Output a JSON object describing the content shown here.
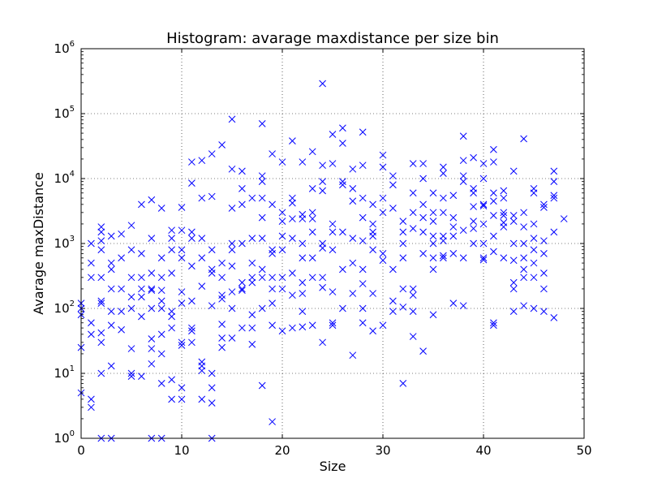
{
  "chart_data": {
    "type": "scatter",
    "title": "Histogram: avarage maxdistance per size bin",
    "xlabel": "Size",
    "ylabel": "Avarage maxDistance",
    "xlim": [
      0,
      50
    ],
    "ylim": [
      1,
      1000000
    ],
    "yscale": "log",
    "grid": true,
    "marker": "x",
    "marker_color": "#0000ff",
    "x_ticks": [
      {
        "value": 0,
        "label": "0"
      },
      {
        "value": 10,
        "label": "10"
      },
      {
        "value": 20,
        "label": "20"
      },
      {
        "value": 30,
        "label": "30"
      },
      {
        "value": 40,
        "label": "40"
      },
      {
        "value": 50,
        "label": "50"
      }
    ],
    "y_ticks": [
      {
        "value": 1,
        "base": "10",
        "exp": "0"
      },
      {
        "value": 10,
        "base": "10",
        "exp": "1"
      },
      {
        "value": 100,
        "base": "10",
        "exp": "2"
      },
      {
        "value": 1000,
        "base": "10",
        "exp": "3"
      },
      {
        "value": 10000,
        "base": "10",
        "exp": "4"
      },
      {
        "value": 100000,
        "base": "10",
        "exp": "5"
      },
      {
        "value": 1000000,
        "base": "10",
        "exp": "6"
      }
    ],
    "points": [
      [
        0,
        80
      ],
      [
        0,
        120
      ],
      [
        0,
        25
      ],
      [
        0,
        5
      ],
      [
        0,
        100
      ],
      [
        1,
        1000
      ],
      [
        1,
        500
      ],
      [
        1,
        300
      ],
      [
        1,
        60
      ],
      [
        1,
        40
      ],
      [
        1,
        4
      ],
      [
        1,
        3
      ],
      [
        2,
        1800
      ],
      [
        2,
        1500
      ],
      [
        2,
        1100
      ],
      [
        2,
        800
      ],
      [
        2,
        300
      ],
      [
        2,
        120
      ],
      [
        2,
        130
      ],
      [
        2,
        42
      ],
      [
        2,
        30
      ],
      [
        2,
        10
      ],
      [
        2,
        1
      ],
      [
        3,
        1300
      ],
      [
        3,
        500
      ],
      [
        3,
        400
      ],
      [
        3,
        200
      ],
      [
        3,
        90
      ],
      [
        3,
        55
      ],
      [
        3,
        13
      ],
      [
        3,
        1
      ],
      [
        4,
        1400
      ],
      [
        4,
        600
      ],
      [
        4,
        200
      ],
      [
        4,
        90
      ],
      [
        4,
        47
      ],
      [
        5,
        1900
      ],
      [
        5,
        800
      ],
      [
        5,
        300
      ],
      [
        5,
        150
      ],
      [
        5,
        100
      ],
      [
        5,
        24
      ],
      [
        5,
        10
      ],
      [
        5,
        9
      ],
      [
        6,
        4000
      ],
      [
        6,
        700
      ],
      [
        6,
        300
      ],
      [
        6,
        200
      ],
      [
        6,
        150
      ],
      [
        6,
        75
      ],
      [
        6,
        9
      ],
      [
        7,
        4700
      ],
      [
        7,
        1200
      ],
      [
        7,
        350
      ],
      [
        7,
        200
      ],
      [
        7,
        190
      ],
      [
        7,
        100
      ],
      [
        7,
        34
      ],
      [
        7,
        24
      ],
      [
        7,
        14
      ],
      [
        7,
        1
      ],
      [
        8,
        3500
      ],
      [
        8,
        600
      ],
      [
        8,
        300
      ],
      [
        8,
        190
      ],
      [
        8,
        130
      ],
      [
        8,
        100
      ],
      [
        8,
        40
      ],
      [
        8,
        20
      ],
      [
        8,
        7
      ],
      [
        8,
        1
      ],
      [
        9,
        1600
      ],
      [
        9,
        1200
      ],
      [
        9,
        800
      ],
      [
        9,
        350
      ],
      [
        9,
        90
      ],
      [
        9,
        75
      ],
      [
        9,
        50
      ],
      [
        9,
        8
      ],
      [
        9,
        4
      ],
      [
        10,
        3600
      ],
      [
        10,
        1600
      ],
      [
        10,
        800
      ],
      [
        10,
        600
      ],
      [
        10,
        180
      ],
      [
        10,
        120
      ],
      [
        10,
        30
      ],
      [
        10,
        27
      ],
      [
        10,
        6
      ],
      [
        10,
        4
      ],
      [
        11,
        18000
      ],
      [
        11,
        8500
      ],
      [
        11,
        1500
      ],
      [
        11,
        1200
      ],
      [
        11,
        450
      ],
      [
        11,
        130
      ],
      [
        11,
        50
      ],
      [
        11,
        45
      ],
      [
        11,
        30
      ],
      [
        12,
        19000
      ],
      [
        12,
        5000
      ],
      [
        12,
        1200
      ],
      [
        12,
        600
      ],
      [
        12,
        220
      ],
      [
        12,
        15
      ],
      [
        12,
        13
      ],
      [
        12,
        11
      ],
      [
        12,
        4
      ],
      [
        13,
        24000
      ],
      [
        13,
        5300
      ],
      [
        13,
        800
      ],
      [
        13,
        400
      ],
      [
        13,
        350
      ],
      [
        13,
        110
      ],
      [
        13,
        10
      ],
      [
        13,
        6
      ],
      [
        13,
        3.5
      ],
      [
        13,
        1
      ],
      [
        14,
        33000
      ],
      [
        14,
        500
      ],
      [
        14,
        300
      ],
      [
        14,
        160
      ],
      [
        14,
        140
      ],
      [
        14,
        57
      ],
      [
        14,
        35
      ],
      [
        14,
        25
      ],
      [
        15,
        82000
      ],
      [
        15,
        14000
      ],
      [
        15,
        3500
      ],
      [
        15,
        1000
      ],
      [
        15,
        800
      ],
      [
        15,
        450
      ],
      [
        15,
        180
      ],
      [
        15,
        100
      ],
      [
        15,
        35
      ],
      [
        16,
        13000
      ],
      [
        16,
        7000
      ],
      [
        16,
        4000
      ],
      [
        16,
        1000
      ],
      [
        16,
        250
      ],
      [
        16,
        200
      ],
      [
        16,
        190
      ],
      [
        16,
        50
      ],
      [
        17,
        5000
      ],
      [
        17,
        1200
      ],
      [
        17,
        500
      ],
      [
        17,
        300
      ],
      [
        17,
        250
      ],
      [
        17,
        80
      ],
      [
        17,
        50
      ],
      [
        17,
        28
      ],
      [
        18,
        70000
      ],
      [
        18,
        11000
      ],
      [
        18,
        9000
      ],
      [
        18,
        5000
      ],
      [
        18,
        2500
      ],
      [
        18,
        1200
      ],
      [
        18,
        400
      ],
      [
        18,
        300
      ],
      [
        18,
        100
      ],
      [
        18,
        6.5
      ],
      [
        19,
        24000
      ],
      [
        19,
        4000
      ],
      [
        19,
        800
      ],
      [
        19,
        700
      ],
      [
        19,
        300
      ],
      [
        19,
        200
      ],
      [
        19,
        120
      ],
      [
        19,
        55
      ],
      [
        19,
        1.8
      ],
      [
        20,
        18000
      ],
      [
        20,
        3000
      ],
      [
        20,
        2200
      ],
      [
        20,
        1300
      ],
      [
        20,
        800
      ],
      [
        20,
        300
      ],
      [
        20,
        200
      ],
      [
        20,
        45
      ],
      [
        21,
        38000
      ],
      [
        21,
        5000
      ],
      [
        21,
        4200
      ],
      [
        21,
        2400
      ],
      [
        21,
        1200
      ],
      [
        21,
        350
      ],
      [
        21,
        160
      ],
      [
        21,
        50
      ],
      [
        22,
        18000
      ],
      [
        22,
        2800
      ],
      [
        22,
        2400
      ],
      [
        22,
        1000
      ],
      [
        22,
        600
      ],
      [
        22,
        250
      ],
      [
        22,
        170
      ],
      [
        22,
        90
      ],
      [
        22,
        52
      ],
      [
        23,
        26000
      ],
      [
        23,
        7000
      ],
      [
        23,
        3000
      ],
      [
        23,
        2400
      ],
      [
        23,
        1500
      ],
      [
        23,
        600
      ],
      [
        23,
        300
      ],
      [
        23,
        55
      ],
      [
        24,
        290000
      ],
      [
        24,
        16000
      ],
      [
        24,
        9000
      ],
      [
        24,
        6500
      ],
      [
        24,
        1000
      ],
      [
        24,
        850
      ],
      [
        24,
        300
      ],
      [
        24,
        210
      ],
      [
        24,
        30
      ],
      [
        25,
        48000
      ],
      [
        25,
        17000
      ],
      [
        25,
        2000
      ],
      [
        25,
        1500
      ],
      [
        25,
        800
      ],
      [
        25,
        180
      ],
      [
        25,
        60
      ],
      [
        25,
        55
      ],
      [
        26,
        60000
      ],
      [
        26,
        35000
      ],
      [
        26,
        9000
      ],
      [
        26,
        8000
      ],
      [
        26,
        1500
      ],
      [
        26,
        400
      ],
      [
        26,
        100
      ],
      [
        27,
        14000
      ],
      [
        27,
        7000
      ],
      [
        27,
        4500
      ],
      [
        27,
        1200
      ],
      [
        27,
        500
      ],
      [
        27,
        170
      ],
      [
        27,
        19
      ],
      [
        28,
        52000
      ],
      [
        28,
        16000
      ],
      [
        28,
        5000
      ],
      [
        28,
        2500
      ],
      [
        28,
        1100
      ],
      [
        28,
        400
      ],
      [
        28,
        240
      ],
      [
        28,
        100
      ],
      [
        28,
        60
      ],
      [
        29,
        4000
      ],
      [
        29,
        2000
      ],
      [
        29,
        1500
      ],
      [
        29,
        1300
      ],
      [
        29,
        800
      ],
      [
        29,
        170
      ],
      [
        29,
        45
      ],
      [
        30,
        23000
      ],
      [
        30,
        15000
      ],
      [
        30,
        5000
      ],
      [
        30,
        3000
      ],
      [
        30,
        700
      ],
      [
        30,
        550
      ],
      [
        30,
        55
      ],
      [
        31,
        11000
      ],
      [
        31,
        8000
      ],
      [
        31,
        3500
      ],
      [
        31,
        400
      ],
      [
        31,
        130
      ],
      [
        31,
        90
      ],
      [
        32,
        2200
      ],
      [
        32,
        1500
      ],
      [
        32,
        1000
      ],
      [
        32,
        600
      ],
      [
        32,
        200
      ],
      [
        32,
        105
      ],
      [
        32,
        7
      ],
      [
        33,
        17000
      ],
      [
        33,
        6000
      ],
      [
        33,
        3000
      ],
      [
        33,
        1700
      ],
      [
        33,
        200
      ],
      [
        33,
        160
      ],
      [
        33,
        90
      ],
      [
        33,
        37
      ],
      [
        34,
        17000
      ],
      [
        34,
        10000
      ],
      [
        34,
        4000
      ],
      [
        34,
        2500
      ],
      [
        34,
        1500
      ],
      [
        34,
        700
      ],
      [
        34,
        22
      ],
      [
        35,
        6000
      ],
      [
        35,
        3000
      ],
      [
        35,
        2200
      ],
      [
        35,
        1300
      ],
      [
        35,
        1000
      ],
      [
        35,
        600
      ],
      [
        35,
        400
      ],
      [
        35,
        80
      ],
      [
        36,
        15000
      ],
      [
        36,
        12000
      ],
      [
        36,
        5000
      ],
      [
        36,
        3000
      ],
      [
        36,
        1300
      ],
      [
        36,
        1100
      ],
      [
        36,
        650
      ],
      [
        36,
        600
      ],
      [
        37,
        5500
      ],
      [
        37,
        2500
      ],
      [
        37,
        1800
      ],
      [
        37,
        1300
      ],
      [
        37,
        700
      ],
      [
        37,
        120
      ],
      [
        38,
        45000
      ],
      [
        38,
        19000
      ],
      [
        38,
        11000
      ],
      [
        38,
        9000
      ],
      [
        38,
        1600
      ],
      [
        38,
        600
      ],
      [
        38,
        110
      ],
      [
        39,
        21000
      ],
      [
        39,
        7000
      ],
      [
        39,
        6000
      ],
      [
        39,
        3700
      ],
      [
        39,
        2200
      ],
      [
        39,
        1700
      ],
      [
        39,
        1000
      ],
      [
        40,
        17000
      ],
      [
        40,
        10000
      ],
      [
        40,
        4000
      ],
      [
        40,
        3800
      ],
      [
        40,
        2000
      ],
      [
        40,
        1000
      ],
      [
        40,
        600
      ],
      [
        40,
        560
      ],
      [
        41,
        28000
      ],
      [
        41,
        18000
      ],
      [
        41,
        6000
      ],
      [
        41,
        4500
      ],
      [
        41,
        2700
      ],
      [
        41,
        1300
      ],
      [
        41,
        750
      ],
      [
        41,
        60
      ],
      [
        41,
        55
      ],
      [
        42,
        6500
      ],
      [
        42,
        5000
      ],
      [
        42,
        3000
      ],
      [
        42,
        2700
      ],
      [
        42,
        2100
      ],
      [
        42,
        1800
      ],
      [
        42,
        600
      ],
      [
        43,
        13000
      ],
      [
        43,
        2700
      ],
      [
        43,
        2200
      ],
      [
        43,
        1000
      ],
      [
        43,
        550
      ],
      [
        43,
        250
      ],
      [
        43,
        200
      ],
      [
        43,
        90
      ],
      [
        44,
        41000
      ],
      [
        44,
        3000
      ],
      [
        44,
        1800
      ],
      [
        44,
        1000
      ],
      [
        44,
        600
      ],
      [
        44,
        400
      ],
      [
        44,
        300
      ],
      [
        44,
        110
      ],
      [
        45,
        7000
      ],
      [
        45,
        6000
      ],
      [
        45,
        2000
      ],
      [
        45,
        1200
      ],
      [
        45,
        800
      ],
      [
        45,
        500
      ],
      [
        45,
        300
      ],
      [
        45,
        100
      ],
      [
        46,
        4000
      ],
      [
        46,
        3600
      ],
      [
        46,
        1100
      ],
      [
        46,
        700
      ],
      [
        46,
        350
      ],
      [
        46,
        200
      ],
      [
        46,
        90
      ],
      [
        47,
        13000
      ],
      [
        47,
        9000
      ],
      [
        47,
        5500
      ],
      [
        47,
        5000
      ],
      [
        47,
        1500
      ],
      [
        47,
        72
      ],
      [
        48,
        2400
      ]
    ]
  }
}
